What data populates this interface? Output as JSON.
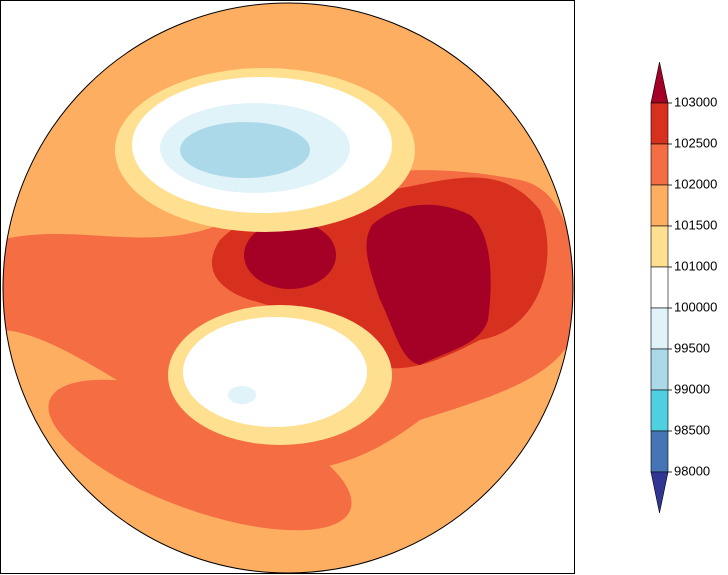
{
  "colorbar": {
    "levels": [
      103000,
      102500,
      102000,
      101500,
      101000,
      100000,
      99500,
      99000,
      98500,
      98000
    ],
    "colors": [
      "#a50026",
      "#d7301f",
      "#f46d43",
      "#fdae61",
      "#fee090",
      "#ffffff",
      "#e0f3f8",
      "#abd9e9",
      "#4ed0e0",
      "#4575b4",
      "#313695"
    ]
  }
}
